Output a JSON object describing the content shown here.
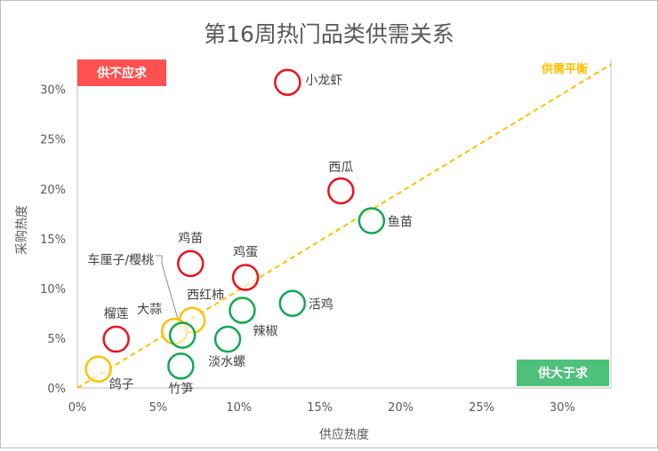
{
  "chart_data": {
    "type": "scatter",
    "title": "第16周热门品类供需关系",
    "xlabel": "供应热度",
    "ylabel": "采购热度",
    "xlim": [
      0,
      0.33
    ],
    "ylim": [
      0,
      0.33
    ],
    "x_ticks": [
      0,
      0.05,
      0.1,
      0.15,
      0.2,
      0.25,
      0.3
    ],
    "y_ticks": [
      0,
      0.05,
      0.1,
      0.15,
      0.2,
      0.25,
      0.3
    ],
    "x_tick_labels": [
      "0%",
      "5%",
      "10%",
      "15%",
      "20%",
      "25%",
      "30%"
    ],
    "y_tick_labels": [
      "0%",
      "5%",
      "10%",
      "15%",
      "20%",
      "25%",
      "30%"
    ],
    "grid": false,
    "reference_line": {
      "label": "供需平衡",
      "from": [
        0,
        0
      ],
      "to": [
        0.33,
        0.325
      ],
      "color": "#FFC000"
    },
    "quadrant_labels": {
      "top_left": {
        "text": "供不应求",
        "color": "#FF5050"
      },
      "bottom_right": {
        "text": "供大于求",
        "color": "#4DC07A"
      }
    },
    "colors": {
      "demand": "#E8141E",
      "supply": "#13A84F",
      "balance": "#FFC000"
    },
    "points": [
      {
        "name": "小龙虾",
        "x": 0.13,
        "y": 0.307,
        "category": "demand"
      },
      {
        "name": "西瓜",
        "x": 0.163,
        "y": 0.198,
        "category": "demand"
      },
      {
        "name": "鱼苗",
        "x": 0.182,
        "y": 0.168,
        "category": "supply"
      },
      {
        "name": "鸡苗",
        "x": 0.07,
        "y": 0.125,
        "category": "demand"
      },
      {
        "name": "鸡蛋",
        "x": 0.104,
        "y": 0.111,
        "category": "demand"
      },
      {
        "name": "活鸡",
        "x": 0.133,
        "y": 0.085,
        "category": "supply"
      },
      {
        "name": "西红柿",
        "x": 0.071,
        "y": 0.068,
        "category": "balance"
      },
      {
        "name": "辣椒",
        "x": 0.102,
        "y": 0.078,
        "category": "supply"
      },
      {
        "name": "大蒜",
        "x": 0.06,
        "y": 0.057,
        "category": "balance"
      },
      {
        "name": "车厘子/樱桃",
        "x": 0.065,
        "y": 0.053,
        "category": "supply"
      },
      {
        "name": "榴莲",
        "x": 0.024,
        "y": 0.049,
        "category": "demand"
      },
      {
        "name": "淡水螺",
        "x": 0.093,
        "y": 0.049,
        "category": "supply"
      },
      {
        "name": "竹笋",
        "x": 0.064,
        "y": 0.022,
        "category": "supply"
      },
      {
        "name": "鸽子",
        "x": 0.013,
        "y": 0.019,
        "category": "balance"
      }
    ]
  }
}
